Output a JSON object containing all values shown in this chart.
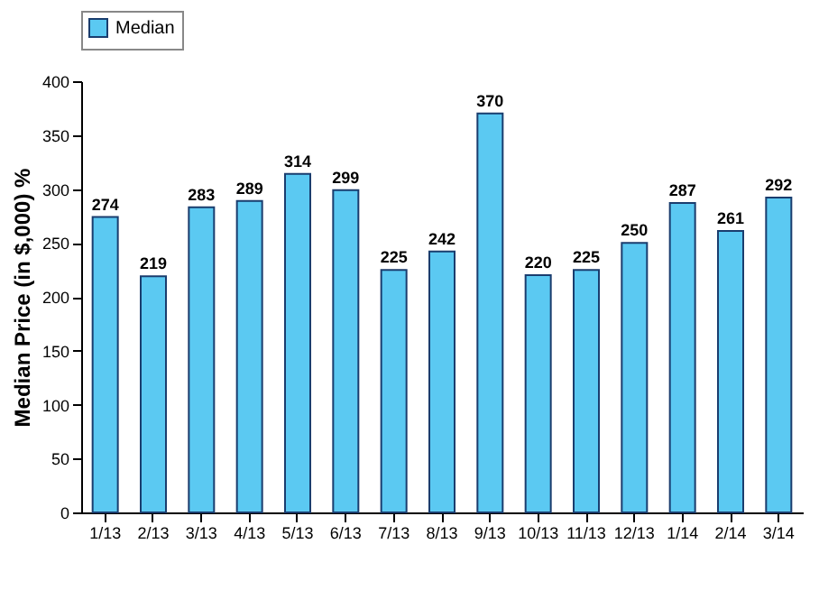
{
  "chart_data": {
    "type": "bar",
    "ylabel": "Median Price (in $,000) %",
    "categories": [
      "1/13",
      "2/13",
      "3/13",
      "4/13",
      "5/13",
      "6/13",
      "7/13",
      "8/13",
      "9/13",
      "10/13",
      "11/13",
      "12/13",
      "1/14",
      "2/14",
      "3/14"
    ],
    "series": [
      {
        "name": "Median",
        "color": "#5bc9f2",
        "values": [
          274,
          219,
          283,
          289,
          314,
          299,
          225,
          242,
          370,
          220,
          225,
          250,
          287,
          261,
          292
        ]
      }
    ],
    "ylim": [
      0,
      400
    ],
    "yticks": [
      0,
      50,
      100,
      150,
      200,
      250,
      300,
      350,
      400
    ],
    "data_labels": true,
    "legend": "top",
    "grid": false
  }
}
